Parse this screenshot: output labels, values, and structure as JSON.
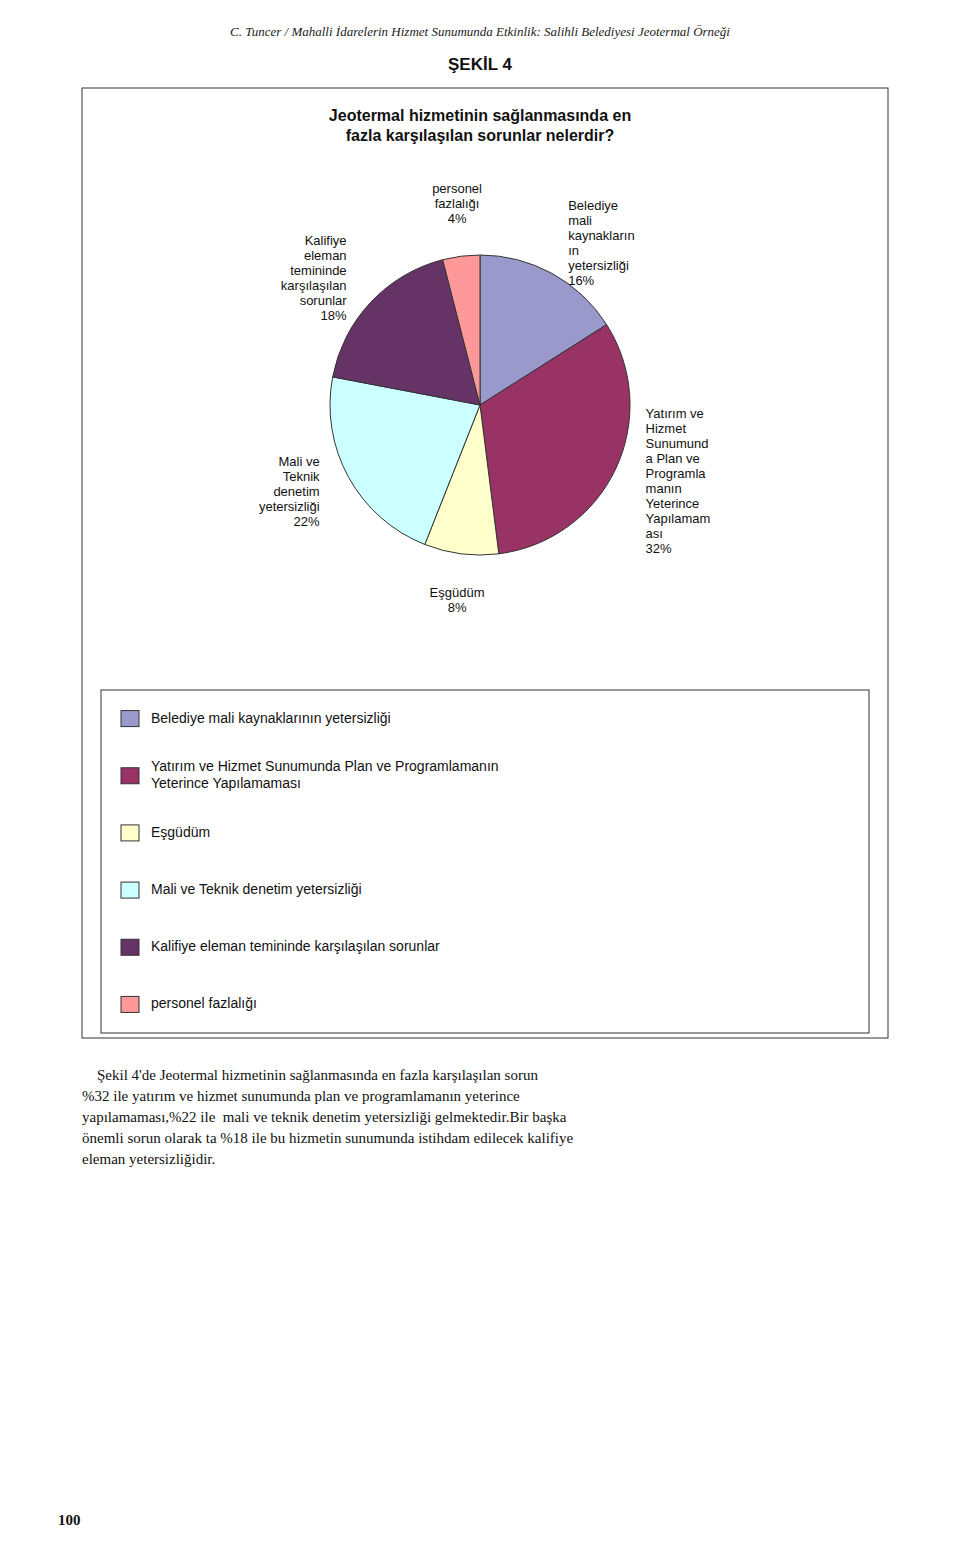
{
  "header": "C. Tuncer / Mahalli İdarelerin Hizmet Sunumunda Etkinlik: Salihli Belediyesi Jeotermal Örneği",
  "figure_title": "ŞEKİL 4",
  "body_text": "    Şekil 4'de Jeotermal hizmetinin sağlanmasında en fazla karşılaşılan sorun\n%32 ile yatırım ve hizmet sunumunda plan ve programlamanın yeterince\nyapılamaması,%22 ile  mali ve teknik denetim yetersizliği gelmektedir.Bir başka\nönemli sorun olarak ta %18 ile bu hizmetin sunumunda istihdam edilecek kalifiye\neleman yetersizliğidir.",
  "page_number": "100",
  "chart_data": {
    "type": "pie",
    "title": "Jeotermal hizmetinin sağlanmasında en\nfazla karşılaşılan sorunlar nelerdir?",
    "categories": [
      "Belediye mali kaynaklarının yetersizliği",
      "Yatırım ve Hizmet Sunumunda Plan ve Programlamanın\nYeterince Yapılamaması",
      "Eşgüdüm",
      "Mali ve Teknik denetim yetersizliği",
      "Kalifiye eleman temininde karşılaşılan sorunlar",
      "personel fazlalığı"
    ],
    "values": [
      16,
      32,
      8,
      22,
      18,
      4
    ],
    "value_labels": [
      "Belediye\nmali\nkaynakların\nın\nyetersizliği\n16%",
      "Yatırım ve\nHizmet\nSunumund\na Plan ve\nProgramla\nmanın\nYeterince\nYapılamam\nası\n32%",
      "Eşgüdüm\n8%",
      "Mali ve\nTeknik\ndenetim\nyetersizliği\n22%",
      "Kalifiye\neleman\ntemininde\nkarşılaşılan\nsorunlar\n18%",
      "personel\nfazlalığı\n4%"
    ],
    "colors": [
      "#9999CC",
      "#993366",
      "#FFFFCC",
      "#CCFFFF",
      "#663366",
      "#FF9999"
    ],
    "data_labels": true,
    "legend": "bottom"
  }
}
